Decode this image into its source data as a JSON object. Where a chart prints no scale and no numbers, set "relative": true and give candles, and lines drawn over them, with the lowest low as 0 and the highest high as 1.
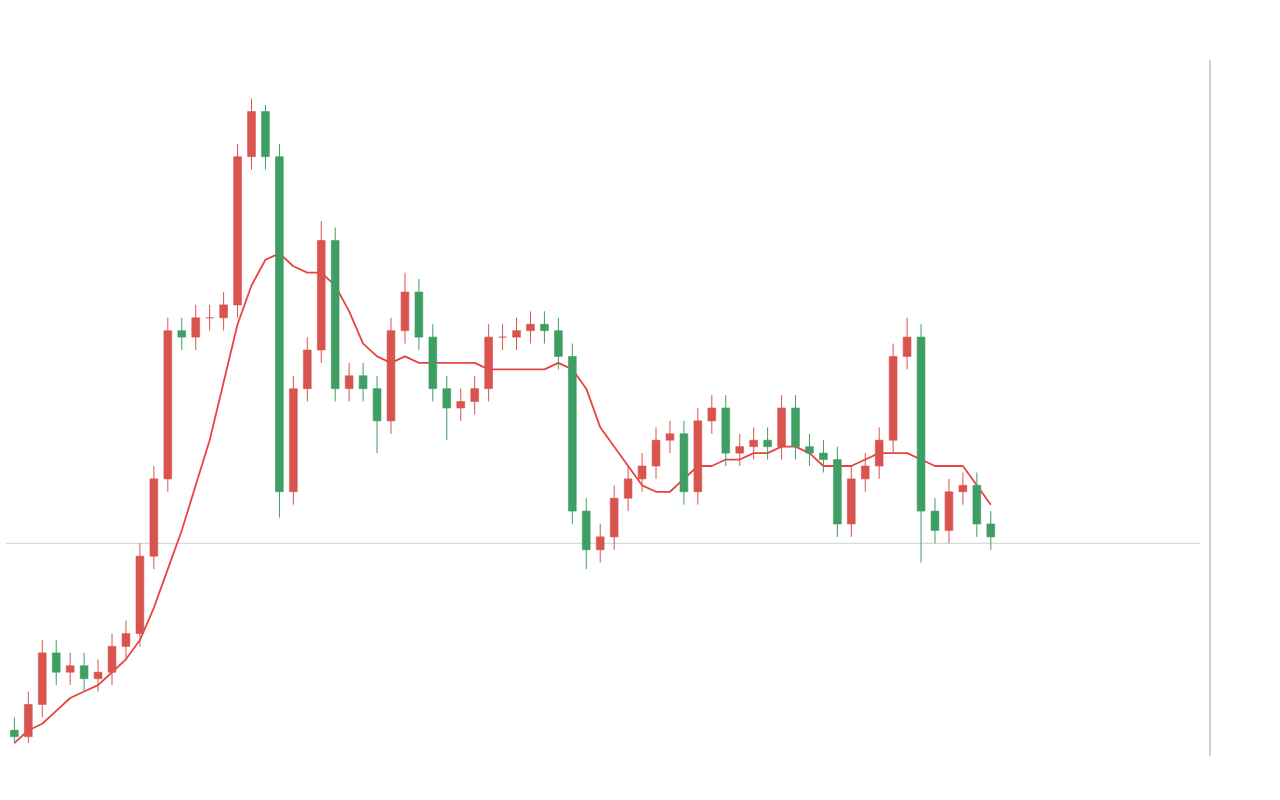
{
  "chart_data": {
    "type": "candlestick",
    "relative": true,
    "categories": [
      null,
      null,
      null,
      null,
      null,
      null,
      null,
      null,
      null,
      null,
      null,
      null,
      null,
      null,
      null,
      null,
      null,
      null,
      null,
      null,
      null,
      null,
      null,
      null,
      null,
      null,
      null,
      null,
      null,
      null,
      null,
      null,
      null,
      null,
      null,
      null,
      null,
      null,
      null,
      null,
      null,
      null,
      null,
      null,
      null,
      null,
      null,
      null,
      null,
      null,
      null,
      null,
      null,
      null,
      null,
      null,
      null,
      null,
      null,
      null,
      null,
      null,
      null,
      null,
      null,
      null,
      null,
      null,
      null,
      null,
      null
    ],
    "ohlc": [
      [
        0.02,
        0.04,
        0.0,
        0.01
      ],
      [
        0.01,
        0.08,
        0.0,
        0.06
      ],
      [
        0.06,
        0.16,
        0.04,
        0.14
      ],
      [
        0.14,
        0.16,
        0.09,
        0.11
      ],
      [
        0.11,
        0.14,
        0.09,
        0.12
      ],
      [
        0.12,
        0.14,
        0.08,
        0.1
      ],
      [
        0.1,
        0.13,
        0.08,
        0.11
      ],
      [
        0.11,
        0.17,
        0.09,
        0.15
      ],
      [
        0.15,
        0.19,
        0.13,
        0.17
      ],
      [
        0.17,
        0.31,
        0.15,
        0.29
      ],
      [
        0.29,
        0.43,
        0.27,
        0.41
      ],
      [
        0.41,
        0.66,
        0.39,
        0.64
      ],
      [
        0.64,
        0.66,
        0.61,
        0.63
      ],
      [
        0.63,
        0.68,
        0.61,
        0.66
      ],
      [
        0.66,
        0.68,
        0.64,
        0.66
      ],
      [
        0.66,
        0.7,
        0.64,
        0.68
      ],
      [
        0.68,
        0.93,
        0.66,
        0.91
      ],
      [
        0.91,
        1.0,
        0.89,
        0.98
      ],
      [
        0.98,
        0.99,
        0.89,
        0.91
      ],
      [
        0.91,
        0.93,
        0.35,
        0.39
      ],
      [
        0.39,
        0.57,
        0.37,
        0.55
      ],
      [
        0.55,
        0.63,
        0.53,
        0.61
      ],
      [
        0.61,
        0.81,
        0.59,
        0.78
      ],
      [
        0.78,
        0.8,
        0.53,
        0.55
      ],
      [
        0.55,
        0.59,
        0.53,
        0.57
      ],
      [
        0.57,
        0.59,
        0.53,
        0.55
      ],
      [
        0.55,
        0.57,
        0.45,
        0.5
      ],
      [
        0.5,
        0.66,
        0.48,
        0.64
      ],
      [
        0.64,
        0.73,
        0.62,
        0.7
      ],
      [
        0.7,
        0.72,
        0.61,
        0.63
      ],
      [
        0.63,
        0.65,
        0.53,
        0.55
      ],
      [
        0.55,
        0.57,
        0.47,
        0.52
      ],
      [
        0.52,
        0.55,
        0.5,
        0.53
      ],
      [
        0.53,
        0.57,
        0.51,
        0.55
      ],
      [
        0.55,
        0.65,
        0.53,
        0.63
      ],
      [
        0.63,
        0.65,
        0.61,
        0.63
      ],
      [
        0.63,
        0.66,
        0.61,
        0.64
      ],
      [
        0.64,
        0.67,
        0.62,
        0.65
      ],
      [
        0.65,
        0.67,
        0.62,
        0.64
      ],
      [
        0.64,
        0.66,
        0.58,
        0.6
      ],
      [
        0.6,
        0.62,
        0.34,
        0.36
      ],
      [
        0.36,
        0.38,
        0.27,
        0.3
      ],
      [
        0.3,
        0.34,
        0.28,
        0.32
      ],
      [
        0.32,
        0.4,
        0.3,
        0.38
      ],
      [
        0.38,
        0.43,
        0.36,
        0.41
      ],
      [
        0.41,
        0.45,
        0.39,
        0.43
      ],
      [
        0.43,
        0.49,
        0.41,
        0.47
      ],
      [
        0.47,
        0.5,
        0.45,
        0.48
      ],
      [
        0.48,
        0.5,
        0.37,
        0.39
      ],
      [
        0.39,
        0.52,
        0.37,
        0.5
      ],
      [
        0.5,
        0.54,
        0.48,
        0.52
      ],
      [
        0.52,
        0.54,
        0.43,
        0.45
      ],
      [
        0.45,
        0.48,
        0.43,
        0.46
      ],
      [
        0.46,
        0.49,
        0.44,
        0.47
      ],
      [
        0.47,
        0.49,
        0.44,
        0.46
      ],
      [
        0.46,
        0.54,
        0.44,
        0.52
      ],
      [
        0.52,
        0.54,
        0.44,
        0.46
      ],
      [
        0.46,
        0.48,
        0.43,
        0.45
      ],
      [
        0.45,
        0.47,
        0.42,
        0.44
      ],
      [
        0.44,
        0.46,
        0.32,
        0.34
      ],
      [
        0.34,
        0.43,
        0.32,
        0.41
      ],
      [
        0.41,
        0.45,
        0.39,
        0.43
      ],
      [
        0.43,
        0.49,
        0.41,
        0.47
      ],
      [
        0.47,
        0.62,
        0.45,
        0.6
      ],
      [
        0.6,
        0.66,
        0.58,
        0.63
      ],
      [
        0.63,
        0.65,
        0.28,
        0.36
      ],
      [
        0.36,
        0.38,
        0.31,
        0.33
      ],
      [
        0.33,
        0.41,
        0.31,
        0.39
      ],
      [
        0.39,
        0.42,
        0.37,
        0.4
      ],
      [
        0.4,
        0.42,
        0.32,
        0.34
      ],
      [
        0.34,
        0.36,
        0.3,
        0.32
      ]
    ],
    "series": [
      {
        "type": "line",
        "color": "#e8433f",
        "values": [
          0.0,
          0.02,
          0.03,
          0.05,
          0.07,
          0.08,
          0.09,
          0.11,
          0.13,
          0.16,
          0.21,
          0.27,
          0.33,
          0.4,
          0.47,
          0.56,
          0.65,
          0.71,
          0.75,
          0.76,
          0.74,
          0.73,
          0.73,
          0.71,
          0.67,
          0.62,
          0.6,
          0.59,
          0.6,
          0.59,
          0.59,
          0.59,
          0.59,
          0.59,
          0.58,
          0.58,
          0.58,
          0.58,
          0.58,
          0.59,
          0.58,
          0.55,
          0.49,
          0.46,
          0.43,
          0.4,
          0.39,
          0.39,
          0.41,
          0.43,
          0.43,
          0.44,
          0.44,
          0.45,
          0.45,
          0.46,
          0.46,
          0.45,
          0.43,
          0.43,
          0.43,
          0.44,
          0.45,
          0.45,
          0.45,
          0.44,
          0.43,
          0.43,
          0.43,
          0.4,
          0.37
        ]
      }
    ],
    "ref_lines": [
      {
        "axis": "y",
        "value": 0.31,
        "color": "#d8d8d8"
      }
    ]
  }
}
